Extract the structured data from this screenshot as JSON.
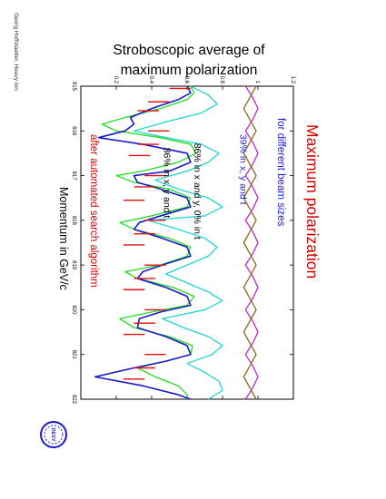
{
  "side_note": "Georg Hoffstaetter, Heavy Ion",
  "logo_text": "DESY",
  "chart_data": {
    "type": "line",
    "orientation": "rotated-90-clockwise",
    "title_line1": "Stroboscopic average of",
    "title_line2": "maximum polarization",
    "heading": "Maximum polarization",
    "subheading": "for different beam sizes",
    "footer_note": "after automated search algorithm",
    "xlabel": "Momentum in GeV/c",
    "xlim": [
      815,
      822
    ],
    "ylim": [
      0,
      1.2
    ],
    "x_ticks": [
      "815",
      "816",
      "817",
      "818",
      "819",
      "820",
      "821",
      "822"
    ],
    "y_ticks": [
      "0.2",
      "0.4",
      "0.6",
      "0.8",
      "1",
      "1.2"
    ],
    "annotations": [
      {
        "text": "39% in x, y and t",
        "x": 817.9,
        "y": 0.9
      },
      {
        "text": "86% in x and y, 0% in t",
        "x": 818.1,
        "y": 0.64
      },
      {
        "text": "86% in x, y and t",
        "x": 818.2,
        "y": 0.47
      }
    ],
    "colors": {
      "heading": "#d40000",
      "subheading": "#1a1adf",
      "footer_note": "#d40000",
      "label_39": "#1a1adf"
    },
    "series": [
      {
        "name": "",
        "color": "#cc22cc",
        "x": [
          815,
          815.25,
          815.5,
          815.75,
          816,
          816.25,
          816.5,
          816.75,
          817,
          817.25,
          817.5,
          817.75,
          818,
          818.25,
          818.5,
          818.75,
          819,
          819.25,
          819.5,
          819.75,
          820,
          820.25,
          820.5,
          820.75,
          821,
          821.25,
          821.5,
          821.75,
          822
        ],
        "y": [
          0.93,
          0.97,
          1.0,
          0.97,
          0.93,
          0.97,
          1.0,
          0.97,
          0.93,
          0.97,
          1.0,
          0.97,
          0.93,
          0.97,
          1.0,
          0.97,
          0.93,
          0.97,
          1.0,
          0.97,
          0.93,
          0.97,
          1.0,
          0.97,
          0.93,
          0.97,
          1.0,
          0.97,
          0.93
        ]
      },
      {
        "name": "",
        "color": "#8a6a18",
        "x": [
          815,
          815.25,
          815.5,
          815.75,
          816,
          816.25,
          816.5,
          816.75,
          817,
          817.25,
          817.5,
          817.75,
          818,
          818.25,
          818.5,
          818.75,
          819,
          819.25,
          819.5,
          819.75,
          820,
          820.25,
          820.5,
          820.75,
          821,
          821.25,
          821.5,
          821.75,
          822
        ],
        "y": [
          0.99,
          0.955,
          0.92,
          0.955,
          0.99,
          0.955,
          0.92,
          0.955,
          0.99,
          0.955,
          0.92,
          0.955,
          0.99,
          0.955,
          0.92,
          0.955,
          0.99,
          0.955,
          0.92,
          0.955,
          0.99,
          0.955,
          0.92,
          0.955,
          0.99,
          0.955,
          0.92,
          0.955,
          0.99
        ]
      },
      {
        "name": "",
        "color": "#22d4d4",
        "x": [
          815,
          815.2,
          815.4,
          815.6,
          815.8,
          816,
          816.1,
          816.3,
          816.5,
          816.7,
          816.9,
          817.1,
          817.3,
          817.5,
          817.7,
          817.9,
          818.0,
          818.2,
          818.4,
          818.6,
          818.8,
          819.0,
          819.2,
          819.4,
          819.6,
          819.8,
          820.0,
          820.2,
          820.4,
          820.6,
          820.8,
          821.0,
          821.2,
          821.4,
          821.6,
          821.8,
          822
        ],
        "y": [
          0.62,
          0.72,
          0.77,
          0.68,
          0.48,
          0.3,
          0.42,
          0.68,
          0.78,
          0.72,
          0.6,
          0.42,
          0.55,
          0.72,
          0.8,
          0.7,
          0.38,
          0.55,
          0.7,
          0.77,
          0.72,
          0.6,
          0.48,
          0.6,
          0.72,
          0.8,
          0.7,
          0.46,
          0.58,
          0.72,
          0.8,
          0.74,
          0.6,
          0.7,
          0.78,
          0.8,
          0.72
        ]
      },
      {
        "name": "",
        "color": "#22dd22",
        "x": [
          815,
          815.15,
          815.3,
          815.5,
          815.7,
          815.85,
          816,
          816.15,
          816.3,
          816.5,
          816.7,
          816.9,
          817.0,
          817.15,
          817.3,
          817.5,
          817.7,
          817.9,
          818.05,
          818.2,
          818.4,
          818.6,
          818.8,
          819.0,
          819.15,
          819.3,
          819.5,
          819.7,
          819.9,
          820.05,
          820.2,
          820.4,
          820.6,
          820.8,
          821.0,
          821.15,
          821.3,
          821.5,
          821.7,
          821.9,
          822
        ],
        "y": [
          0.62,
          0.64,
          0.6,
          0.45,
          0.25,
          0.12,
          0.2,
          0.45,
          0.62,
          0.65,
          0.55,
          0.35,
          0.2,
          0.3,
          0.5,
          0.62,
          0.6,
          0.4,
          0.22,
          0.3,
          0.5,
          0.62,
          0.6,
          0.45,
          0.25,
          0.32,
          0.52,
          0.64,
          0.6,
          0.4,
          0.22,
          0.3,
          0.5,
          0.63,
          0.62,
          0.48,
          0.32,
          0.42,
          0.55,
          0.6,
          0.6
        ]
      },
      {
        "name": "",
        "color": "#1a1ac8",
        "x": [
          815,
          815.15,
          815.3,
          815.5,
          815.7,
          815.85,
          816,
          816.15,
          816.3,
          816.5,
          816.7,
          816.9,
          817.0,
          817.15,
          817.3,
          817.5,
          817.7,
          817.9,
          818.05,
          818.2,
          818.4,
          818.6,
          818.8,
          819.0,
          819.15,
          819.3,
          819.5,
          819.7,
          819.9,
          820.05,
          820.2,
          820.4,
          820.6,
          820.8,
          821.0,
          821.15,
          821.3,
          821.5,
          821.7,
          821.9,
          822
        ],
        "y": [
          0.6,
          0.62,
          0.55,
          0.4,
          0.28,
          0.3,
          0.25,
          0.1,
          0.35,
          0.6,
          0.62,
          0.5,
          0.3,
          0.32,
          0.45,
          0.6,
          0.62,
          0.45,
          0.33,
          0.3,
          0.46,
          0.6,
          0.62,
          0.46,
          0.35,
          0.32,
          0.48,
          0.6,
          0.62,
          0.45,
          0.33,
          0.32,
          0.48,
          0.6,
          0.62,
          0.48,
          0.3,
          0.08,
          0.35,
          0.55,
          0.62
        ]
      },
      {
        "name": "",
        "color": "#e01010",
        "x": [
          815.05,
          815.35,
          815.55,
          816.0,
          816.3,
          816.55,
          817.0,
          817.25,
          817.55,
          818.0,
          818.3,
          818.55,
          819.0,
          819.3,
          819.55,
          820.0,
          820.3,
          820.55,
          821.0,
          821.3,
          821.55
        ],
        "y": [
          0.56,
          0.44,
          0.38,
          0.44,
          0.38,
          0.33,
          0.42,
          0.36,
          0.3,
          0.42,
          0.36,
          0.3,
          0.42,
          0.36,
          0.3,
          0.42,
          0.36,
          0.3,
          0.42,
          0.36,
          0.3
        ]
      }
    ]
  }
}
